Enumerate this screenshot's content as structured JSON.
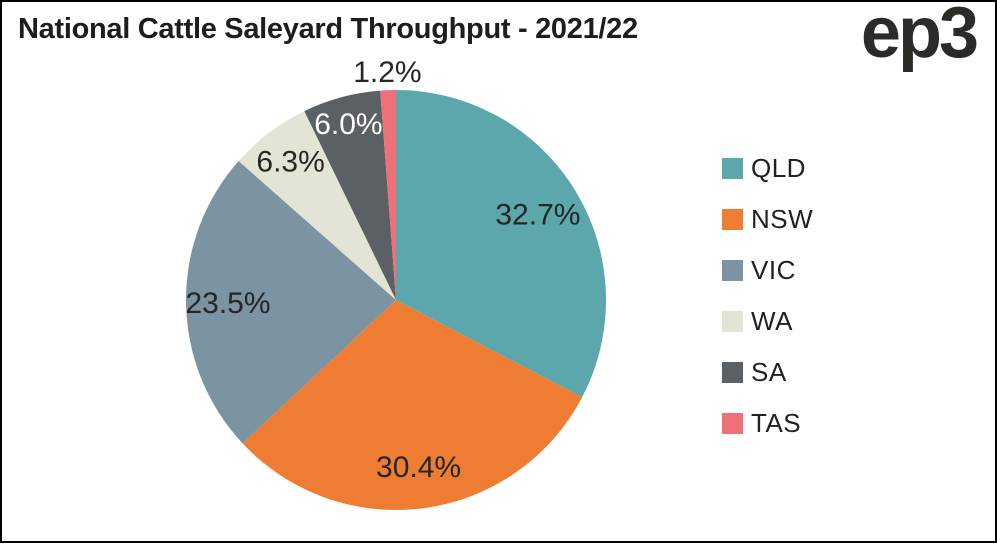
{
  "header": {
    "title": "National Cattle Saleyard Throughput - 2021/22",
    "logo_text": "ep3"
  },
  "colors": {
    "background": "#ffffff",
    "frame_border": "#000000",
    "title_text": "#1d1d1b",
    "logo_text": "#2d2b28",
    "label_dark": "#262626",
    "label_light": "#ffffff"
  },
  "chart_data": {
    "type": "pie",
    "title": "National Cattle Saleyard Throughput - 2021/22",
    "unit": "%",
    "direction": "clockwise",
    "start_angle_deg": 0,
    "legend_position": "right",
    "slices": [
      {
        "name": "QLD",
        "value": 32.7,
        "display": "32.7%",
        "color": "#5CA7AB",
        "label_color": "#262626",
        "label_r": 0.79
      },
      {
        "name": "NSW",
        "value": 30.4,
        "display": "30.4%",
        "color": "#EE7D33",
        "label_color": "#262626",
        "label_r": 0.8
      },
      {
        "name": "VIC",
        "value": 23.5,
        "display": "23.5%",
        "color": "#7C93A1",
        "label_color": "#262626",
        "label_r": 0.8
      },
      {
        "name": "WA",
        "value": 6.3,
        "display": "6.3%",
        "color": "#E4E4D6",
        "label_color": "#262626",
        "label_r": 0.83
      },
      {
        "name": "SA",
        "value": 6.0,
        "display": "6.0%",
        "color": "#5A6064",
        "label_color": "#ffffff",
        "label_r": 0.87
      },
      {
        "name": "TAS",
        "value": 1.2,
        "display": "1.2%",
        "color": "#F0707A",
        "label_color": "#262626",
        "label_r": 1.09
      }
    ]
  }
}
